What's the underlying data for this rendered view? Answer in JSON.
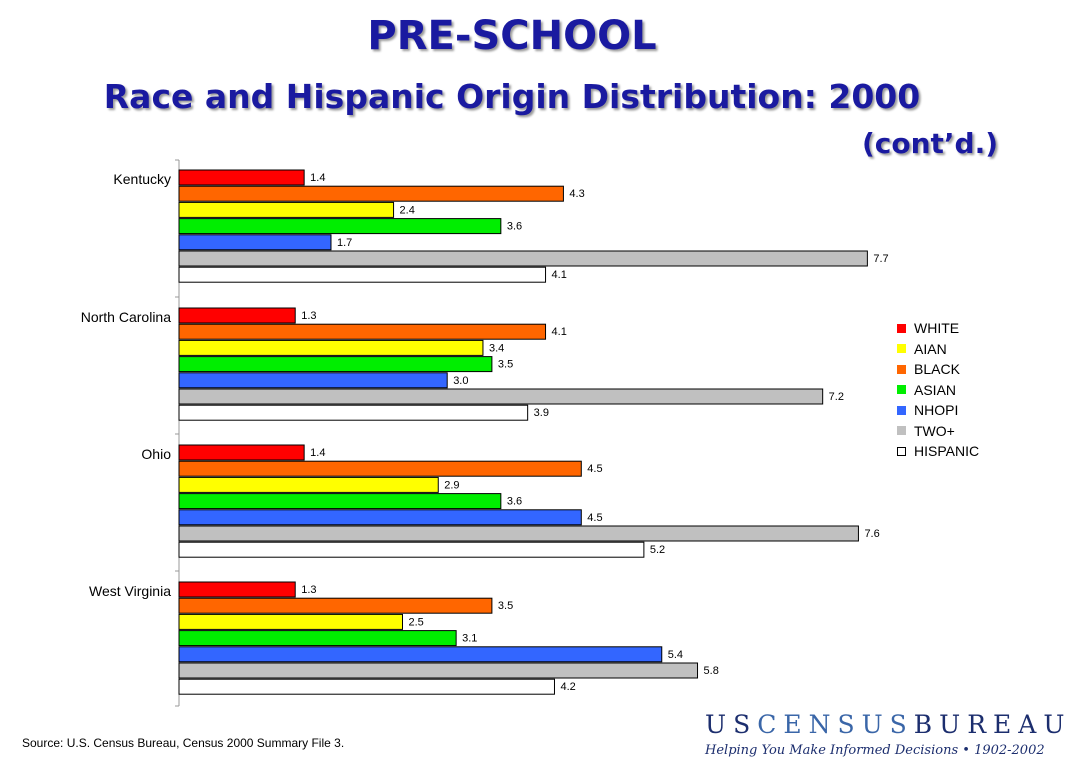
{
  "slide": {
    "title": "PRE-SCHOOL",
    "subtitle": "Race and Hispanic Origin Distribution:  2000",
    "subtitle_cont": "(cont’d.)",
    "source": "Source:  U.S. Census Bureau, Census 2000 Summary File 3."
  },
  "logo": {
    "wordmark": "USCENSUSBUREAU",
    "tagline": "Helping You Make Informed Decisions • 1902-2002"
  },
  "chart_data": {
    "type": "bar",
    "orientation": "horizontal",
    "title": "",
    "xlabel": "",
    "ylabel": "",
    "xlim": [
      0,
      7.7
    ],
    "grid": false,
    "legend_position": "right",
    "categories": [
      "Kentucky",
      "North Carolina",
      "Ohio",
      "West Virginia"
    ],
    "series": [
      {
        "name": "WHITE",
        "color": "#ff0000",
        "values": [
          1.4,
          1.3,
          1.4,
          1.3
        ]
      },
      {
        "name": "BLACK",
        "color": "#ff6600",
        "values": [
          4.3,
          4.1,
          4.5,
          3.5
        ]
      },
      {
        "name": "AIAN",
        "color": "#ffff00",
        "values": [
          2.4,
          3.4,
          2.9,
          2.5
        ]
      },
      {
        "name": "ASIAN",
        "color": "#00ee00",
        "values": [
          3.6,
          3.5,
          3.6,
          3.1
        ]
      },
      {
        "name": "NHOPI",
        "color": "#3366ff",
        "values": [
          1.7,
          3.0,
          4.5,
          5.4
        ]
      },
      {
        "name": "TWO+",
        "color": "#c0c0c0",
        "values": [
          7.7,
          7.2,
          7.6,
          5.8
        ]
      },
      {
        "name": "HISPANIC",
        "color": "#ffffff",
        "values": [
          4.1,
          3.9,
          5.2,
          4.2
        ]
      }
    ],
    "data_labels": [
      [
        "1.4",
        "1.3",
        "1.4",
        "1.3"
      ],
      [
        "4.3",
        "4.1",
        "4.5",
        "3.5"
      ],
      [
        "2.4",
        "3.4",
        "2.9",
        "2.5"
      ],
      [
        "3.6",
        "3.5",
        "3.6",
        "3.1"
      ],
      [
        "1.7",
        "3.0",
        "4.5",
        "5.4"
      ],
      [
        "7.7",
        "7.2",
        "7.6",
        "5.8"
      ],
      [
        "4.1",
        "3.9",
        "5.2",
        "4.2"
      ]
    ],
    "legend": [
      {
        "name": "WHITE",
        "color": "#ff0000"
      },
      {
        "name": "AIAN",
        "color": "#ffff00"
      },
      {
        "name": "BLACK",
        "color": "#ff6600"
      },
      {
        "name": "ASIAN",
        "color": "#00ee00"
      },
      {
        "name": "NHOPI",
        "color": "#3366ff"
      },
      {
        "name": "TWO+",
        "color": "#c0c0c0"
      },
      {
        "name": "HISPANIC",
        "color": "#ffffff"
      }
    ]
  }
}
